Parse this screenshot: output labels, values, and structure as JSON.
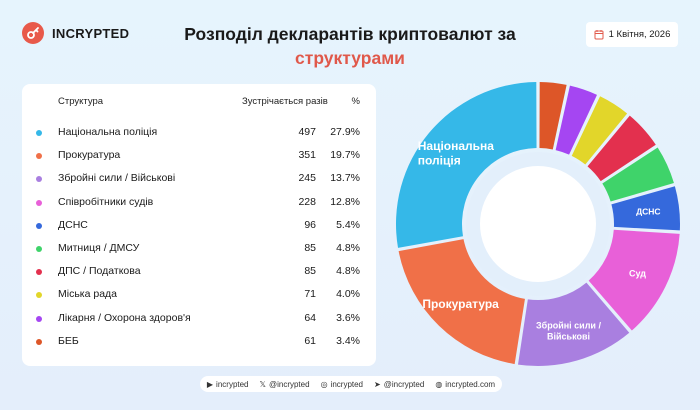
{
  "brand": {
    "name": "INCRYPTED",
    "logo": "key-icon"
  },
  "title": {
    "line1": "Розподіл декларантів криптовалют за",
    "line2": "структурами"
  },
  "date": {
    "icon": "calendar-icon",
    "text": "1 Квітня, 2026"
  },
  "table": {
    "headers": [
      "Структура",
      "Зустрічається разів",
      "%"
    ],
    "rows": [
      {
        "name": "Національна поліція",
        "count": "497",
        "pct": "27.9%",
        "color": "#35b8e8"
      },
      {
        "name": "Прокуратура",
        "count": "351",
        "pct": "19.7%",
        "color": "#f07048"
      },
      {
        "name": "Збройні сили / Військові",
        "count": "245",
        "pct": "13.7%",
        "color": "#a97fe0"
      },
      {
        "name": "Співробітники судів",
        "count": "228",
        "pct": "12.8%",
        "color": "#e860d8"
      },
      {
        "name": "ДСНС",
        "count": "96",
        "pct": "5.4%",
        "color": "#3569dc"
      },
      {
        "name": "Митниця / ДМСУ",
        "count": "85",
        "pct": "4.8%",
        "color": "#3fd36a"
      },
      {
        "name": "ДПС / Податкова",
        "count": "85",
        "pct": "4.8%",
        "color": "#e3304e"
      },
      {
        "name": "Міська рада",
        "count": "71",
        "pct": "4.0%",
        "color": "#e2d62a"
      },
      {
        "name": "Лікарня / Охорона здоров'я",
        "count": "64",
        "pct": "3.6%",
        "color": "#a546f2"
      },
      {
        "name": "БЕБ",
        "count": "61",
        "pct": "3.4%",
        "color": "#dd5628"
      }
    ]
  },
  "chart_data": {
    "type": "pie",
    "donut": true,
    "categories": [
      "Національна поліція",
      "Прокуратура",
      "Збройні сили / Військові",
      "Співробітники судів",
      "ДСНС",
      "Митниця / ДМСУ",
      "ДПС / Податкова",
      "Міська рада",
      "Лікарня / Охорона здоров'я",
      "БЕБ"
    ],
    "values": [
      497,
      351,
      245,
      228,
      96,
      85,
      85,
      71,
      64,
      61
    ],
    "colors": [
      "#35b8e8",
      "#f07048",
      "#a97fe0",
      "#e860d8",
      "#3569dc",
      "#3fd36a",
      "#e3304e",
      "#e2d62a",
      "#a546f2",
      "#dd5628"
    ],
    "slice_labels": [
      "Національна поліція",
      "Прокуратура",
      "Збройні сили / Військові",
      "Суд",
      "ДСНС",
      "",
      "",
      "",
      "",
      ""
    ]
  },
  "footer": [
    {
      "icon": "youtube-icon",
      "text": "incrypted"
    },
    {
      "icon": "x-icon",
      "text": "@incrypted"
    },
    {
      "icon": "instagram-icon",
      "text": "incrypted"
    },
    {
      "icon": "telegram-icon",
      "text": "@incrypted"
    },
    {
      "icon": "globe-icon",
      "text": "incrypted.com"
    }
  ]
}
